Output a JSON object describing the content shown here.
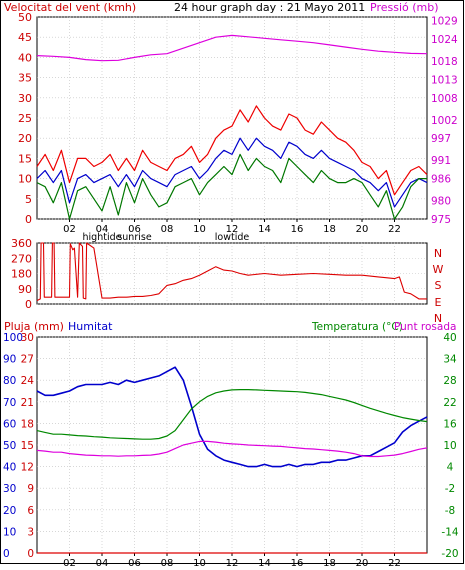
{
  "colors": {
    "frame": "#000000",
    "grid": "#c0c0c0",
    "wind_avg": "#0000cc",
    "wind_gust": "#ee0000",
    "wind_low": "#007700",
    "pressure": "#dd00dd",
    "direction": "#dd0000",
    "temperature": "#008800",
    "dewpoint": "#dd00dd",
    "humidity": "#0000cc",
    "rain": "#dd0000",
    "label_red": "#cc0000",
    "label_magenta": "#cc00cc",
    "label_blue": "#0000cc",
    "label_green": "#008800",
    "label_black": "#000000"
  },
  "chart_data": [
    {
      "type": "line",
      "title": "24 hour graph day : 21 Mayo 2011",
      "left_axis_label": "Velocitat del vent (kmh)",
      "right_axis_label": "Pressió (mb)",
      "x_ticks": [
        "02",
        "04",
        "06",
        "08",
        "10",
        "12",
        "14",
        "16",
        "18",
        "20",
        "22"
      ],
      "x_annotations": [
        "hightide",
        "sunrise",
        "lowtide"
      ],
      "x_annotation_hours": [
        4,
        6,
        12
      ],
      "xlim": [
        0,
        24
      ],
      "ylim": [
        0,
        50
      ],
      "y_ticks": [
        0,
        5,
        10,
        15,
        20,
        25,
        30,
        35,
        40,
        45,
        50
      ],
      "y2lim": [
        975,
        1030
      ],
      "y2_ticks": [
        975,
        980,
        986,
        991,
        997,
        1002,
        1008,
        1013,
        1018,
        1024,
        1029
      ],
      "grid": true,
      "series": [
        {
          "key": "pressure",
          "axis": "right",
          "x": [
            0,
            1,
            2,
            3,
            4,
            5,
            6,
            7,
            8,
            9,
            10,
            11,
            12,
            13,
            14,
            15,
            16,
            17,
            18,
            19,
            20,
            21,
            22,
            23,
            24
          ],
          "y": [
            1019.5,
            1019.3,
            1019,
            1018.4,
            1018.1,
            1018.2,
            1019,
            1019.7,
            1020,
            1021.5,
            1023,
            1024.5,
            1025,
            1024.6,
            1024.2,
            1023.8,
            1023.4,
            1023,
            1022.4,
            1021.8,
            1021.2,
            1020.7,
            1020.4,
            1020.1,
            1020
          ]
        },
        {
          "key": "wind_gust",
          "axis": "left",
          "x": [
            0,
            0.5,
            1,
            1.5,
            2,
            2.5,
            3,
            3.5,
            4,
            4.5,
            5,
            5.5,
            6,
            6.5,
            7,
            7.5,
            8,
            8.5,
            9,
            9.5,
            10,
            10.5,
            11,
            11.5,
            12,
            12.5,
            13,
            13.5,
            14,
            14.5,
            15,
            15.5,
            16,
            16.5,
            17,
            17.5,
            18,
            18.5,
            19,
            19.5,
            20,
            20.5,
            21,
            21.5,
            22,
            22.5,
            23,
            23.5,
            24
          ],
          "y": [
            13,
            16,
            12,
            17,
            9,
            15,
            15,
            13,
            14,
            16,
            12,
            15,
            12,
            17,
            14,
            13,
            12,
            15,
            16,
            18,
            14,
            16,
            20,
            22,
            23,
            27,
            24,
            28,
            25,
            23,
            22,
            26,
            25,
            22,
            21,
            24,
            22,
            20,
            19,
            17,
            14,
            13,
            10,
            12,
            6,
            9,
            12,
            13,
            11
          ]
        },
        {
          "key": "wind_avg",
          "axis": "left",
          "x": [
            0,
            0.5,
            1,
            1.5,
            2,
            2.5,
            3,
            3.5,
            4,
            4.5,
            5,
            5.5,
            6,
            6.5,
            7,
            7.5,
            8,
            8.5,
            9,
            9.5,
            10,
            10.5,
            11,
            11.5,
            12,
            12.5,
            13,
            13.5,
            14,
            14.5,
            15,
            15.5,
            16,
            16.5,
            17,
            17.5,
            18,
            18.5,
            19,
            19.5,
            20,
            20.5,
            21,
            21.5,
            22,
            22.5,
            23,
            23.5,
            24
          ],
          "y": [
            10,
            12,
            9,
            12,
            4,
            10,
            11,
            9,
            10,
            11,
            8,
            11,
            8,
            12,
            10,
            9,
            8,
            11,
            12,
            13,
            10,
            12,
            15,
            17,
            16,
            20,
            17,
            20,
            18,
            17,
            15,
            19,
            18,
            16,
            15,
            17,
            15,
            14,
            13,
            12,
            10,
            9,
            7,
            9,
            3,
            6,
            9,
            10,
            9
          ]
        },
        {
          "key": "wind_low",
          "axis": "left",
          "x": [
            0,
            0.5,
            1,
            1.5,
            2,
            2.5,
            3,
            3.5,
            4,
            4.5,
            5,
            5.5,
            6,
            6.5,
            7,
            7.5,
            8,
            8.5,
            9,
            9.5,
            10,
            10.5,
            11,
            11.5,
            12,
            12.5,
            13,
            13.5,
            14,
            14.5,
            15,
            15.5,
            16,
            16.5,
            17,
            17.5,
            18,
            18.5,
            19,
            19.5,
            20,
            20.5,
            21,
            21.5,
            22,
            22.5,
            23,
            23.5,
            24
          ],
          "y": [
            9,
            8,
            4,
            9,
            0,
            7,
            8,
            5,
            2,
            8,
            1,
            9,
            4,
            10,
            6,
            3,
            4,
            8,
            9,
            10,
            6,
            9,
            11,
            13,
            11,
            16,
            12,
            15,
            13,
            12,
            9,
            15,
            13,
            11,
            9,
            12,
            10,
            9,
            9,
            10,
            9,
            6,
            3,
            7,
            0,
            3,
            8,
            10,
            10
          ]
        }
      ]
    },
    {
      "type": "line",
      "xlim": [
        0,
        24
      ],
      "ylim": [
        0,
        360
      ],
      "y_ticks": [
        0,
        90,
        180,
        270,
        360
      ],
      "right_labels": [
        "N",
        "W",
        "S",
        "E",
        "N"
      ],
      "grid": true,
      "series": [
        {
          "key": "direction",
          "x": [
            0,
            0.2,
            0.25,
            0.4,
            0.45,
            0.9,
            0.95,
            1.05,
            1.1,
            2.0,
            2.05,
            2.2,
            2.3,
            2.5,
            2.6,
            2.8,
            2.85,
            3.0,
            3.05,
            3.5,
            4.0,
            4.5,
            5.0,
            5.5,
            6.0,
            6.5,
            7.0,
            7.5,
            8.0,
            8.5,
            9.0,
            9.5,
            10.0,
            10.5,
            11.0,
            11.5,
            12.0,
            12.5,
            13.0,
            14.0,
            15.0,
            16.0,
            17.0,
            18.0,
            19.0,
            20.0,
            21.0,
            22.0,
            22.3,
            22.6,
            23.0,
            23.5,
            24.0
          ],
          "y": [
            20,
            30,
            360,
            360,
            40,
            40,
            360,
            360,
            40,
            40,
            355,
            320,
            330,
            40,
            360,
            340,
            35,
            30,
            360,
            330,
            35,
            35,
            40,
            40,
            45,
            45,
            50,
            60,
            110,
            120,
            140,
            150,
            170,
            195,
            220,
            200,
            195,
            180,
            170,
            180,
            170,
            175,
            180,
            175,
            170,
            170,
            160,
            150,
            160,
            70,
            60,
            30,
            30
          ]
        }
      ]
    },
    {
      "type": "line",
      "left_axis_label": "Pluja (mm)",
      "left_axis_label_2": "Humitat",
      "right_axis_label": "Temperatura (°C)",
      "right_axis_label_2": "Punt rosada",
      "x_ticks": [
        "02",
        "04",
        "06",
        "08",
        "10",
        "12",
        "14",
        "16",
        "18",
        "20",
        "22"
      ],
      "x_annotations": [
        "hightide",
        "sunrise",
        "lowtide"
      ],
      "x_annotation_hours": [
        4,
        6,
        12
      ],
      "xlim": [
        0,
        24
      ],
      "humidity_ylim": [
        0,
        100
      ],
      "humidity_ticks": [
        0,
        10,
        20,
        30,
        40,
        50,
        60,
        70,
        80,
        90,
        100
      ],
      "rain_ylim": [
        0,
        30
      ],
      "rain_ticks": [
        0,
        3,
        6,
        9,
        12,
        15,
        18,
        21,
        24,
        27,
        30
      ],
      "temp_ylim": [
        -20,
        40
      ],
      "temp_ticks": [
        -20,
        -14,
        -8,
        -2,
        4,
        10,
        16,
        22,
        28,
        34,
        40
      ],
      "grid": true,
      "series": [
        {
          "key": "humidity",
          "axis": "humidity",
          "x": [
            0,
            0.5,
            1,
            1.5,
            2,
            2.5,
            3,
            3.5,
            4,
            4.5,
            5,
            5.5,
            6,
            6.5,
            7,
            7.5,
            8,
            8.5,
            9,
            9.5,
            10,
            10.5,
            11,
            11.5,
            12,
            12.5,
            13,
            13.5,
            14,
            14.5,
            15,
            15.5,
            16,
            16.5,
            17,
            17.5,
            18,
            18.5,
            19,
            19.5,
            20,
            20.5,
            21,
            21.5,
            22,
            22.5,
            23,
            23.5,
            24
          ],
          "y": [
            75,
            73,
            73,
            74,
            75,
            77,
            78,
            78,
            78,
            79,
            78,
            80,
            79,
            80,
            81,
            82,
            84,
            86,
            80,
            68,
            55,
            48,
            45,
            43,
            42,
            41,
            40,
            40,
            41,
            40,
            40,
            41,
            40,
            41,
            41,
            42,
            42,
            43,
            43,
            44,
            45,
            45,
            47,
            49,
            51,
            56,
            59,
            61,
            63
          ]
        },
        {
          "key": "temperature",
          "axis": "temp",
          "x": [
            0,
            0.5,
            1,
            1.5,
            2,
            2.5,
            3,
            3.5,
            4,
            4.5,
            5,
            5.5,
            6,
            6.5,
            7,
            7.5,
            8,
            8.5,
            9,
            9.5,
            10,
            10.5,
            11,
            11.5,
            12,
            12.5,
            13,
            13.5,
            14,
            14.5,
            15,
            15.5,
            16,
            16.5,
            17,
            17.5,
            18,
            18.5,
            19,
            19.5,
            20,
            20.5,
            21,
            21.5,
            22,
            22.5,
            23,
            23.5,
            24
          ],
          "y": [
            14,
            13.5,
            13,
            13,
            12.8,
            12.6,
            12.5,
            12.3,
            12.2,
            12,
            11.9,
            11.8,
            11.7,
            11.6,
            11.6,
            11.8,
            12.5,
            14,
            17,
            20,
            22,
            23.5,
            24.5,
            25,
            25.3,
            25.4,
            25.4,
            25.3,
            25.2,
            25.1,
            25,
            24.9,
            24.8,
            24.6,
            24.3,
            24,
            23.5,
            23,
            22.5,
            21.8,
            21,
            20.2,
            19.5,
            18.8,
            18.2,
            17.6,
            17.2,
            16.8,
            16.5
          ]
        },
        {
          "key": "dewpoint",
          "axis": "temp",
          "x": [
            0,
            0.5,
            1,
            1.5,
            2,
            2.5,
            3,
            3.5,
            4,
            4.5,
            5,
            5.5,
            6,
            6.5,
            7,
            7.5,
            8,
            8.5,
            9,
            9.5,
            10,
            10.5,
            11,
            11.5,
            12,
            12.5,
            13,
            13.5,
            14,
            14.5,
            15,
            15.5,
            16,
            16.5,
            17,
            17.5,
            18,
            18.5,
            19,
            19.5,
            20,
            20.5,
            21,
            21.5,
            22,
            22.5,
            23,
            23.5,
            24
          ],
          "y": [
            8.5,
            8.3,
            8,
            8,
            7.6,
            7.4,
            7.2,
            7.1,
            7,
            7,
            6.9,
            7,
            7,
            7.1,
            7.2,
            7.5,
            8,
            9,
            10,
            10.5,
            11,
            11,
            10.8,
            10.5,
            10.3,
            10.2,
            10,
            9.9,
            9.8,
            9.7,
            9.6,
            9.4,
            9.2,
            9,
            8.9,
            8.7,
            8.5,
            8.3,
            8,
            7.6,
            7,
            6.8,
            6.8,
            7,
            7.2,
            7.6,
            8.2,
            8.8,
            9.2
          ]
        },
        {
          "key": "rain",
          "axis": "rain",
          "x": [
            0,
            24
          ],
          "y": [
            0,
            0
          ]
        }
      ]
    }
  ]
}
